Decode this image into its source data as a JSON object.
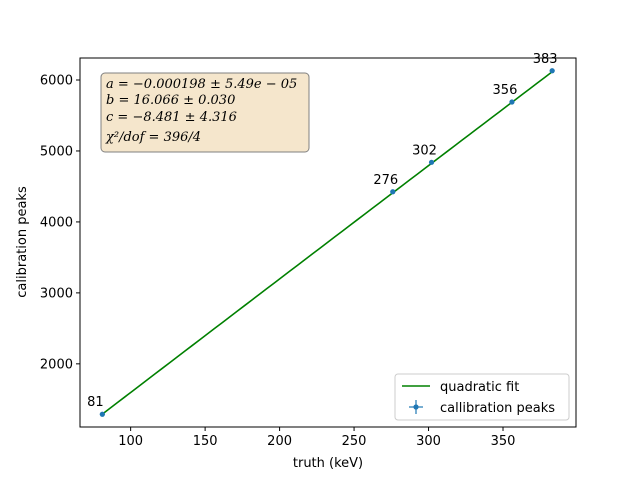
{
  "chart_data": {
    "type": "scatter",
    "title": "",
    "xlabel": "truth (keV)",
    "ylabel": "calibration peaks",
    "xlim": [
      66,
      399
    ],
    "ylim": [
      1110,
      6310
    ],
    "xticks": [
      100,
      150,
      200,
      250,
      300,
      350
    ],
    "yticks": [
      2000,
      3000,
      4000,
      5000,
      6000
    ],
    "grid": false,
    "legend_position": "lower right",
    "series": [
      {
        "name": "callibration peaks",
        "kind": "errorbar-points",
        "color": "#1f77b4",
        "points": [
          {
            "x": 81,
            "y": 1290,
            "label": "81"
          },
          {
            "x": 276,
            "y": 4425,
            "label": "276"
          },
          {
            "x": 302,
            "y": 4840,
            "label": "302"
          },
          {
            "x": 356,
            "y": 5690,
            "label": "356"
          },
          {
            "x": 383,
            "y": 6130,
            "label": "383"
          }
        ]
      },
      {
        "name": "quadratic fit",
        "kind": "curve",
        "color": "#008000",
        "coefficients": {
          "a": -0.000198,
          "b": 16.066,
          "c": -8.481
        }
      }
    ],
    "fit_box": {
      "lines": [
        "a = −0.000198 ± 5.49e − 05",
        "b = 16.066 ± 0.030",
        "c = −8.481 ± 4.316",
        "χ²/dof = 396/4"
      ],
      "background": "#f5e6cc"
    }
  }
}
